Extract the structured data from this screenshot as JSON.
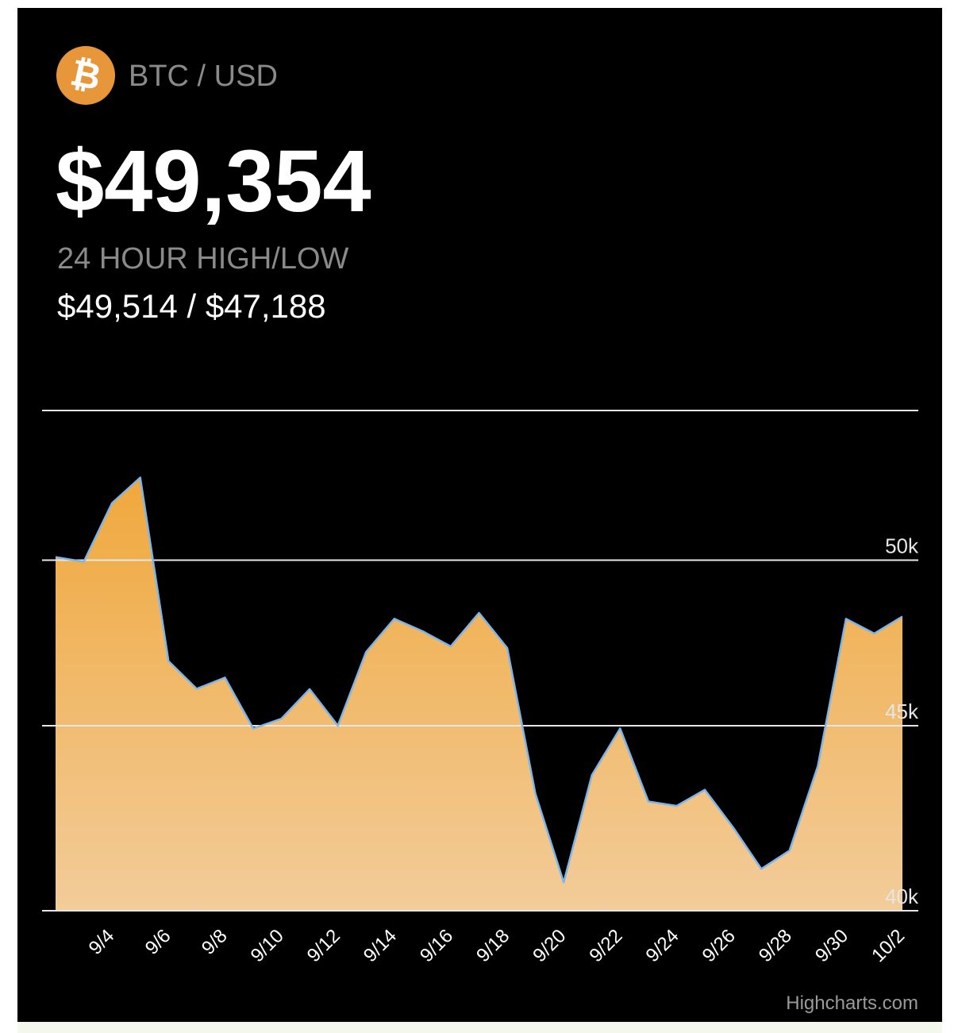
{
  "header": {
    "pair": "BTC / USD",
    "price": "$49,354",
    "range_label": "24 HOUR HIGH/LOW",
    "range_value": "$49,514 / $47,188"
  },
  "chart_data": {
    "type": "area",
    "categories": [
      null,
      null,
      "9/4",
      null,
      "9/6",
      null,
      "9/8",
      null,
      "9/10",
      null,
      "9/12",
      null,
      "9/14",
      null,
      "9/16",
      null,
      "9/18",
      null,
      "9/20",
      null,
      "9/22",
      null,
      "9/24",
      null,
      "9/26",
      null,
      "9/28",
      null,
      "9/30",
      null,
      "10/2"
    ],
    "series": [
      {
        "name": "BTC / USD",
        "color": "#7cb5ec",
        "values": [
          50100,
          49950,
          51850,
          52700,
          46890,
          46070,
          46400,
          44920,
          45200,
          46060,
          45000,
          47160,
          48170,
          47790,
          47330,
          48350,
          47280,
          43090,
          40730,
          43610,
          44920,
          42880,
          42760,
          43200,
          42180,
          41080,
          41560,
          43850,
          48170,
          47720,
          48240
        ]
      }
    ],
    "fill_colors": [
      "#f0a83c",
      "#f2cc9a"
    ],
    "ylim": [
      40000,
      55000
    ],
    "yticks": [
      {
        "value": 40000,
        "label": "40k"
      },
      {
        "value": 45000,
        "label": "45k"
      },
      {
        "value": 50000,
        "label": "50k"
      }
    ],
    "log_scale": true,
    "grid": true,
    "credits": "Highcharts.com"
  }
}
